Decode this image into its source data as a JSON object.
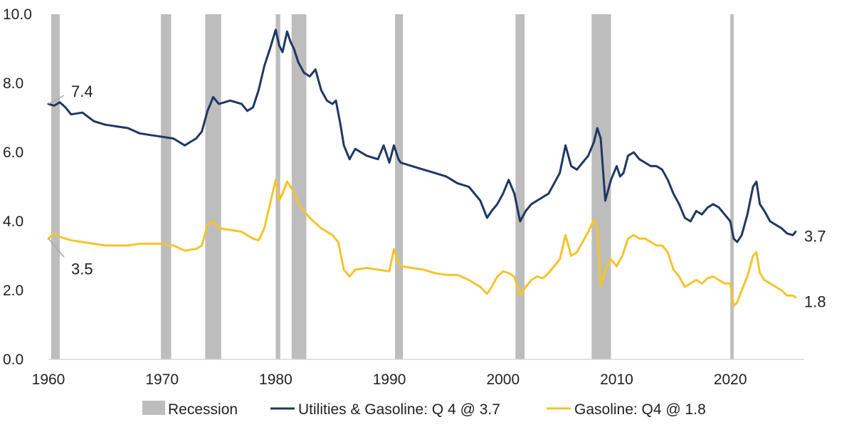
{
  "chart_data": {
    "type": "line",
    "title": "",
    "xlabel": "",
    "ylabel": "",
    "xlim": [
      1960,
      2026.5
    ],
    "ylim": [
      0,
      10
    ],
    "x_ticks": [
      1960,
      1970,
      1980,
      1990,
      2000,
      2010,
      2020
    ],
    "x_tick_labels": [
      "1960",
      "1970",
      "1980",
      "1990",
      "2000",
      "2010",
      "2020"
    ],
    "y_ticks": [
      0,
      2,
      4,
      6,
      8,
      10
    ],
    "y_tick_labels": [
      "0.0",
      "2.0",
      "4.0",
      "6.0",
      "8.0",
      "10.0"
    ],
    "grid": false,
    "legend_position": "bottom",
    "recessions": [
      {
        "start": 1960.25,
        "end": 1961.0
      },
      {
        "start": 1969.9,
        "end": 1970.8
      },
      {
        "start": 1973.8,
        "end": 1975.2
      },
      {
        "start": 1980.0,
        "end": 1980.4
      },
      {
        "start": 1981.4,
        "end": 1982.7
      },
      {
        "start": 1990.5,
        "end": 1991.2
      },
      {
        "start": 2001.1,
        "end": 2001.9
      },
      {
        "start": 2007.8,
        "end": 2009.5
      },
      {
        "start": 2020.0,
        "end": 2020.3
      }
    ],
    "legend": [
      {
        "key": "recession",
        "label": "Recession",
        "color": "#bdbdbd"
      },
      {
        "key": "utilities",
        "label": "Utilities & Gasoline: Q 4 @ 3.7",
        "color": "#1f3864"
      },
      {
        "key": "gasoline",
        "label": "Gasoline: Q4 @ 1.8",
        "color": "#f5c42c"
      }
    ],
    "annotations": [
      {
        "series": "utilities",
        "label": "7.4",
        "side": "start"
      },
      {
        "series": "gasoline",
        "label": "3.5",
        "side": "start"
      },
      {
        "series": "utilities",
        "label": "3.7",
        "side": "end"
      },
      {
        "series": "gasoline",
        "label": "1.8",
        "side": "end"
      }
    ],
    "series": [
      {
        "name": "Utilities & Gasoline: Q 4 @ 3.7",
        "color": "#1f3864",
        "x": [
          1960,
          1960.5,
          1961,
          1961.5,
          1962,
          1963,
          1964,
          1965,
          1966,
          1967,
          1968,
          1969,
          1970,
          1971,
          1972,
          1972.5,
          1973,
          1973.5,
          1974,
          1974.5,
          1975,
          1976,
          1977,
          1977.5,
          1978,
          1978.5,
          1979,
          1979.5,
          1980,
          1980.3,
          1980.6,
          1981,
          1981.3,
          1981.6,
          1982,
          1982.5,
          1983,
          1983.5,
          1984,
          1984.5,
          1985,
          1985.3,
          1985.7,
          1986,
          1986.5,
          1987,
          1988,
          1989,
          1989.5,
          1990,
          1990.4,
          1990.8,
          1991,
          1992,
          1993,
          1994,
          1995,
          1996,
          1997,
          1998,
          1998.6,
          1999,
          1999.5,
          2000,
          2000.5,
          2001,
          2001.5,
          2002,
          2002.5,
          2003,
          2003.5,
          2004,
          2004.5,
          2005,
          2005.5,
          2006,
          2006.5,
          2007,
          2007.5,
          2008,
          2008.3,
          2008.6,
          2009,
          2009.5,
          2010,
          2010.3,
          2010.6,
          2011,
          2011.5,
          2012,
          2012.5,
          2013,
          2013.5,
          2014,
          2014.5,
          2015,
          2015.5,
          2016,
          2016.5,
          2017,
          2017.5,
          2018,
          2018.5,
          2019,
          2019.5,
          2020,
          2020.3,
          2020.6,
          2021,
          2021.5,
          2022,
          2022.3,
          2022.6,
          2023,
          2023.5,
          2024,
          2024.5,
          2025,
          2025.5,
          2025.75
        ],
        "values": [
          7.4,
          7.35,
          7.45,
          7.3,
          7.1,
          7.15,
          6.9,
          6.8,
          6.75,
          6.7,
          6.55,
          6.5,
          6.45,
          6.4,
          6.2,
          6.3,
          6.4,
          6.6,
          7.2,
          7.6,
          7.4,
          7.5,
          7.4,
          7.2,
          7.3,
          7.8,
          8.5,
          9.0,
          9.55,
          9.1,
          8.9,
          9.5,
          9.2,
          9.0,
          8.6,
          8.3,
          8.2,
          8.4,
          7.8,
          7.5,
          7.4,
          7.5,
          6.8,
          6.2,
          5.8,
          6.1,
          5.9,
          5.8,
          6.2,
          5.7,
          6.2,
          5.8,
          5.7,
          5.6,
          5.5,
          5.4,
          5.3,
          5.1,
          5.0,
          4.6,
          4.1,
          4.3,
          4.5,
          4.8,
          5.2,
          4.8,
          4.0,
          4.3,
          4.5,
          4.6,
          4.7,
          4.8,
          5.1,
          5.4,
          6.2,
          5.6,
          5.5,
          5.7,
          5.9,
          6.3,
          6.7,
          6.4,
          4.6,
          5.2,
          5.6,
          5.3,
          5.4,
          5.9,
          6.0,
          5.8,
          5.7,
          5.6,
          5.6,
          5.5,
          5.2,
          4.8,
          4.5,
          4.1,
          4.0,
          4.3,
          4.2,
          4.4,
          4.5,
          4.4,
          4.2,
          4.0,
          3.5,
          3.4,
          3.6,
          4.2,
          5.0,
          5.15,
          4.5,
          4.3,
          4.0,
          3.9,
          3.8,
          3.65,
          3.6,
          3.7
        ]
      },
      {
        "name": "Gasoline: Q4 @ 1.8",
        "color": "#f5c42c",
        "x": [
          1960,
          1960.5,
          1961,
          1962,
          1963,
          1964,
          1965,
          1966,
          1967,
          1968,
          1969,
          1970,
          1971,
          1972,
          1973,
          1973.5,
          1974,
          1974.5,
          1975,
          1976,
          1977,
          1978,
          1978.5,
          1979,
          1979.5,
          1980,
          1980.3,
          1980.6,
          1981,
          1981.5,
          1982,
          1983,
          1984,
          1985,
          1985.5,
          1986,
          1986.5,
          1987,
          1988,
          1989,
          1990,
          1990.4,
          1990.8,
          1991,
          1992,
          1993,
          1994,
          1995,
          1996,
          1997,
          1998,
          1998.6,
          1999,
          1999.5,
          2000,
          2000.5,
          2001,
          2001.5,
          2002,
          2002.5,
          2003,
          2003.5,
          2004,
          2004.5,
          2005,
          2005.5,
          2006,
          2006.5,
          2007,
          2007.5,
          2008,
          2008.3,
          2008.6,
          2009,
          2009.5,
          2010,
          2010.5,
          2011,
          2011.5,
          2012,
          2012.5,
          2013,
          2013.5,
          2014,
          2014.5,
          2015,
          2015.5,
          2016,
          2016.5,
          2017,
          2017.5,
          2018,
          2018.5,
          2019,
          2019.5,
          2020,
          2020.3,
          2020.6,
          2021,
          2021.5,
          2022,
          2022.3,
          2022.6,
          2023,
          2023.5,
          2024,
          2024.5,
          2025,
          2025.5,
          2025.75
        ],
        "values": [
          3.5,
          3.65,
          3.55,
          3.45,
          3.4,
          3.35,
          3.3,
          3.3,
          3.3,
          3.35,
          3.35,
          3.35,
          3.3,
          3.15,
          3.2,
          3.3,
          3.9,
          4.0,
          3.8,
          3.75,
          3.7,
          3.5,
          3.45,
          3.8,
          4.5,
          5.2,
          4.6,
          4.8,
          5.15,
          4.9,
          4.5,
          4.1,
          3.8,
          3.6,
          3.4,
          2.6,
          2.4,
          2.6,
          2.65,
          2.6,
          2.55,
          3.2,
          2.8,
          2.7,
          2.65,
          2.6,
          2.5,
          2.45,
          2.45,
          2.3,
          2.1,
          1.9,
          2.1,
          2.4,
          2.55,
          2.5,
          2.4,
          1.85,
          2.1,
          2.3,
          2.4,
          2.35,
          2.5,
          2.7,
          2.9,
          3.6,
          3.0,
          3.1,
          3.4,
          3.7,
          4.05,
          3.8,
          2.1,
          2.6,
          2.9,
          2.7,
          3.0,
          3.5,
          3.6,
          3.5,
          3.5,
          3.4,
          3.3,
          3.3,
          3.1,
          2.6,
          2.4,
          2.1,
          2.2,
          2.3,
          2.2,
          2.35,
          2.4,
          2.3,
          2.2,
          2.2,
          1.55,
          1.65,
          2.0,
          2.4,
          3.0,
          3.1,
          2.5,
          2.3,
          2.2,
          2.1,
          2.0,
          1.85,
          1.85,
          1.8
        ]
      }
    ]
  }
}
